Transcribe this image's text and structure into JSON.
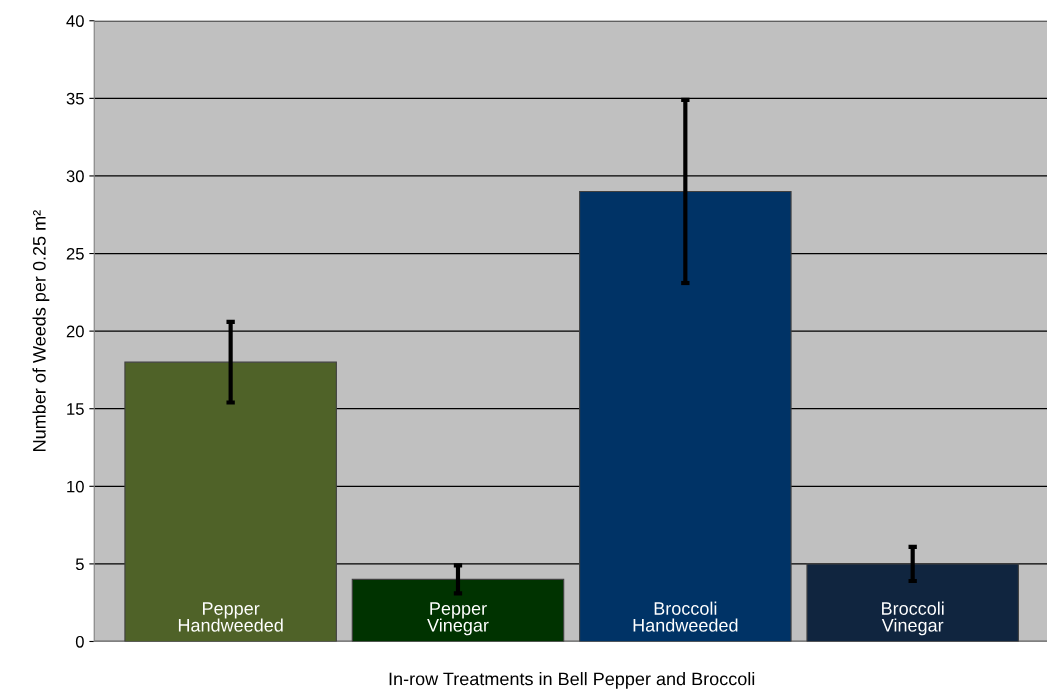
{
  "chart_data": {
    "type": "bar",
    "xlabel": "In-row Treatments in Bell Pepper and Broccoli",
    "ylabel": "Number of Weeds per 0.25 m²",
    "categories": [
      "Pepper\nHandweeded",
      "Pepper\nVinegar",
      "Broccoli\nHandweeded",
      "Broccoli\nVinegar"
    ],
    "values": [
      18,
      4,
      29,
      5
    ],
    "colors": [
      "#4f6228",
      "#003300",
      "#003366",
      "#10253f"
    ],
    "errors": [
      2.6,
      0.9,
      5.9,
      1.1
    ],
    "ylim": [
      0,
      40
    ],
    "yticks": [
      0,
      5,
      10,
      15,
      20,
      25,
      30,
      35,
      40
    ],
    "grid": "y"
  }
}
